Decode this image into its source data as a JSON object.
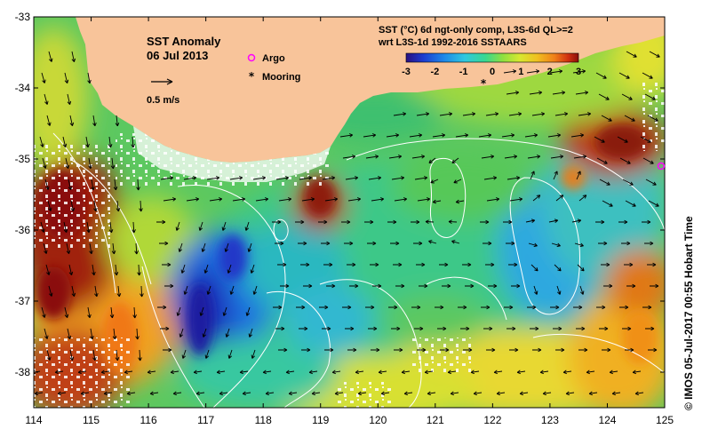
{
  "title": {
    "line1": "SST Anomaly",
    "line2": "06 Jul 2013"
  },
  "velocity_scale": {
    "label": "0.5 m/s"
  },
  "legend": {
    "argo": "Argo",
    "mooring": "Mooring"
  },
  "product": {
    "line1": "SST (°C) 6d ngt-only comp, L3S-6d QL>=2",
    "line2": "wrt L3S-1d 1992-2016 SSTAARS"
  },
  "colorbar": {
    "ticks": [
      "-3",
      "-2",
      "-1",
      "0",
      "1",
      "2",
      "3"
    ],
    "colors": [
      "#2a1080",
      "#1c3cd0",
      "#1e88e8",
      "#30c8e0",
      "#38d890",
      "#8ee040",
      "#d8e830",
      "#f0c020",
      "#f08018",
      "#d03010",
      "#8a0e0a"
    ]
  },
  "axes": {
    "lon_ticks": [
      "114",
      "115",
      "116",
      "117",
      "118",
      "119",
      "120",
      "121",
      "122",
      "123",
      "124",
      "125"
    ],
    "lat_ticks": [
      "-33",
      "-34",
      "-35",
      "-36",
      "-37",
      "-38"
    ],
    "lon_range": [
      114,
      125
    ],
    "lat_range": [
      -38.5,
      -33
    ]
  },
  "credit": "©  IMOS 05-Jul-2017 00:55 Hobart Time",
  "colors": {
    "land": "#f8c49a",
    "no_data": "#ffffff",
    "contour": "#ffffff",
    "arrow": "#000000",
    "argo": "#ff00ff",
    "mooring": "#000000"
  }
}
